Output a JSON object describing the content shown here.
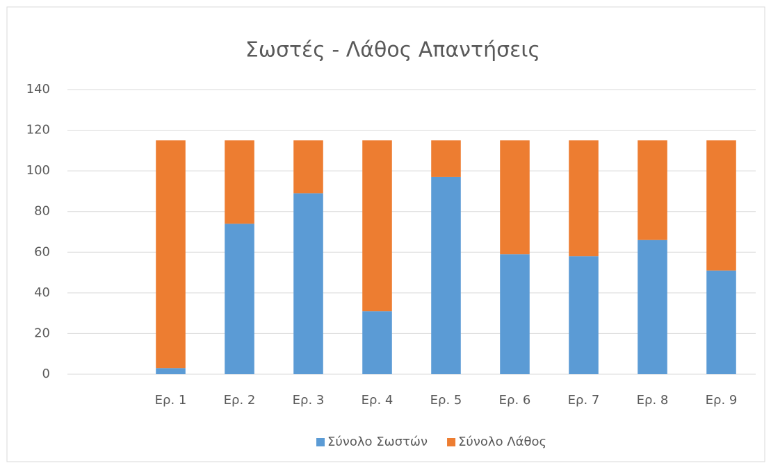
{
  "chart_data": {
    "type": "stacked_bar",
    "title": "Σωστές - Λάθος Απαντήσεις",
    "categories": [
      null,
      "Ερ. 1",
      "Ερ. 2",
      "Ερ. 3",
      "Ερ. 4",
      "Ερ. 5",
      "Ερ. 6",
      "Ερ. 7",
      "Ερ. 8",
      "Ερ. 9"
    ],
    "series": [
      {
        "name": "Σύνολο Σωστών",
        "color": "#5b9bd5",
        "values": [
          null,
          3,
          74,
          89,
          31,
          97,
          59,
          58,
          66,
          51
        ]
      },
      {
        "name": "Σύνολο Λάθος",
        "color": "#ed7d31",
        "values": [
          null,
          112,
          41,
          26,
          84,
          18,
          56,
          57,
          49,
          64
        ]
      }
    ],
    "ylim": [
      0,
      140
    ],
    "yticks": [
      0,
      20,
      40,
      60,
      80,
      100,
      120,
      140
    ],
    "grid": true,
    "legend": "bottom"
  }
}
